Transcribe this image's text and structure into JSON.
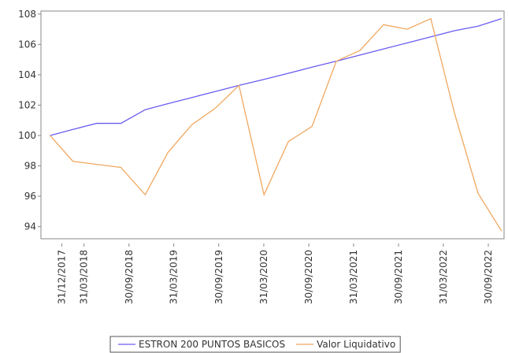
{
  "chart_data": {
    "type": "line",
    "x": [
      "13/11/2017",
      "14/02/2018",
      "21/05/2018",
      "28/08/2018",
      "05/12/2018",
      "08/03/2019",
      "12/06/2019",
      "16/09/2019",
      "21/12/2019",
      "01/04/2020",
      "09/07/2020",
      "13/10/2020",
      "20/01/2021",
      "26/04/2021",
      "31/07/2021",
      "04/11/2021",
      "08/02/2022",
      "15/05/2022",
      "19/08/2022",
      "23/11/2022"
    ],
    "series": [
      {
        "name": "ESTRON 200 PUNTOS BASICOS",
        "color": "#6a5cf0",
        "values": [
          100,
          100.4,
          100.8,
          100.8,
          101.7,
          102.1,
          102.5,
          102.9,
          103.3,
          103.7,
          104.1,
          104.5,
          104.9,
          105.3,
          105.7,
          106.1,
          106.5,
          106.9,
          107.2,
          107.7
        ]
      },
      {
        "name": "Valor Liquidativo",
        "color": "#f0a860",
        "values": [
          100,
          98.3,
          98.1,
          97.9,
          96.1,
          98.9,
          100.7,
          101.8,
          103.3,
          96.1,
          99.6,
          100.6,
          104.9,
          105.6,
          107.3,
          107.0,
          107.7,
          101.5,
          96.2,
          93.7
        ]
      }
    ],
    "xlim": [
      "07/10/2017",
      "03/12/2022"
    ],
    "xticks": [
      "31/12/2017",
      "31/03/2018",
      "30/09/2018",
      "31/03/2019",
      "30/09/2019",
      "31/03/2020",
      "30/09/2020",
      "31/03/2021",
      "30/09/2021",
      "31/03/2022",
      "30/09/2022"
    ],
    "ylim": [
      93.2,
      108.2
    ],
    "yticks": [
      94,
      96,
      98,
      100,
      102,
      104,
      106,
      108
    ],
    "legend": "bottom"
  }
}
